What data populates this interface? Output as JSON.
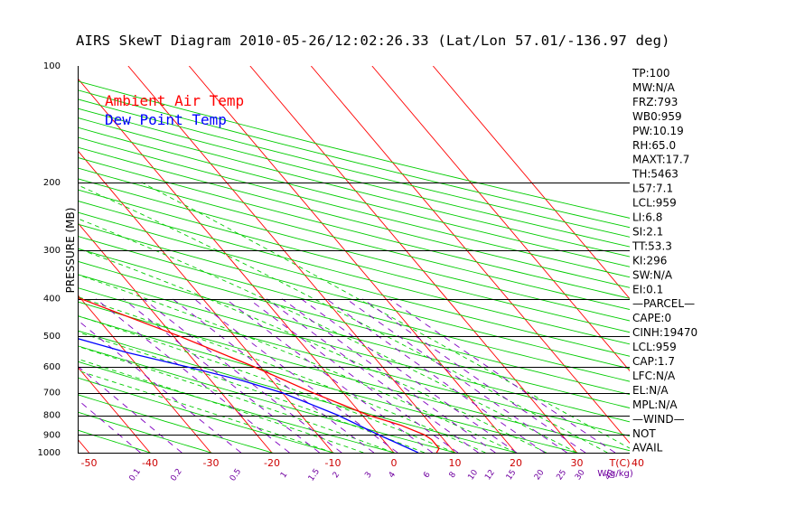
{
  "chart_data": {
    "type": "line",
    "title": "AIRS SkewT Diagram 2010-05-26/12:02:26.33 (Lat/Lon 57.01/-136.97 deg)",
    "ylabel": "PRESSURE (MB)",
    "xlabel": "T(C)",
    "mixing_ratio_label": "W(g/kg)",
    "y_scale": "log",
    "ylim": [
      1000,
      100
    ],
    "xlim_bottom": [
      -55,
      45
    ],
    "pressure_ticks": [
      100,
      200,
      300,
      400,
      500,
      600,
      700,
      800,
      900,
      1000
    ],
    "isobar_lines": [
      200,
      300,
      400,
      500,
      600,
      700,
      800,
      900
    ],
    "top_temp_ticks": [
      -120,
      -110,
      -100,
      -90,
      -80,
      -70,
      -60,
      -50,
      -40
    ],
    "bottom_temp_ticks": [
      -50,
      -40,
      -30,
      -20,
      -10,
      0,
      10,
      20,
      30,
      40
    ],
    "mixing_ratio_values": [
      "0.1",
      "0.2",
      "0.5",
      "1",
      "1.5",
      "2",
      "3",
      "4",
      "6",
      "8",
      "10",
      "12",
      "15",
      "20",
      "25",
      "30",
      "40"
    ],
    "legend": [
      {
        "name": "Ambient Air Temp",
        "color": "#ff0000"
      },
      {
        "name": "Dew Point Temp",
        "color": "#0000ff"
      }
    ],
    "series": [
      {
        "name": "Ambient Air Temp",
        "color": "#ff0000",
        "pressure": [
          1000,
          975,
          925,
          900,
          850,
          800,
          700,
          600,
          500,
          400,
          350,
          300,
          250,
          220,
          200,
          180,
          160,
          150,
          130,
          110,
          100
        ],
        "temperature": [
          7,
          8,
          8,
          7.5,
          5,
          1,
          -5,
          -11,
          -19,
          -30,
          -38,
          -47,
          -50,
          -51,
          -52,
          -50,
          -47,
          -46,
          -48,
          -49,
          -50
        ]
      },
      {
        "name": "Dew Point Temp",
        "color": "#0000ff",
        "pressure": [
          1000,
          900,
          800,
          700,
          650,
          600,
          550,
          500,
          400,
          300,
          250,
          200,
          150,
          120,
          100
        ],
        "temperature": [
          4,
          0,
          -4,
          -10,
          -15,
          -22,
          -30,
          -37,
          -48,
          -61,
          -70,
          -83,
          -97,
          -96,
          -77
        ]
      }
    ],
    "indices": [
      "TP:100",
      "MW:N/A",
      "FRZ:793",
      "WB0:959",
      "PW:10.19",
      "RH:65.0",
      "MAXT:17.7",
      "TH:5463",
      "L57:7.1",
      "LCL:959",
      "LI:6.8",
      "SI:2.1",
      "TT:53.3",
      "KI:296",
      "SW:N/A",
      "EI:0.1",
      "—PARCEL—",
      "CAPE:0",
      "CINH:19470",
      "LCL:959",
      "CAP:1.7",
      "LFC:N/A",
      "EL:N/A",
      "MPL:N/A",
      "—WIND—",
      "NOT",
      "AVAIL"
    ]
  },
  "colors": {
    "isotherm": "#ff0000",
    "dry_adiabat": "#00cc00",
    "moist_adiabat": "#00cc00",
    "mixing_ratio": "#8000c0",
    "isobar": "#000000"
  }
}
